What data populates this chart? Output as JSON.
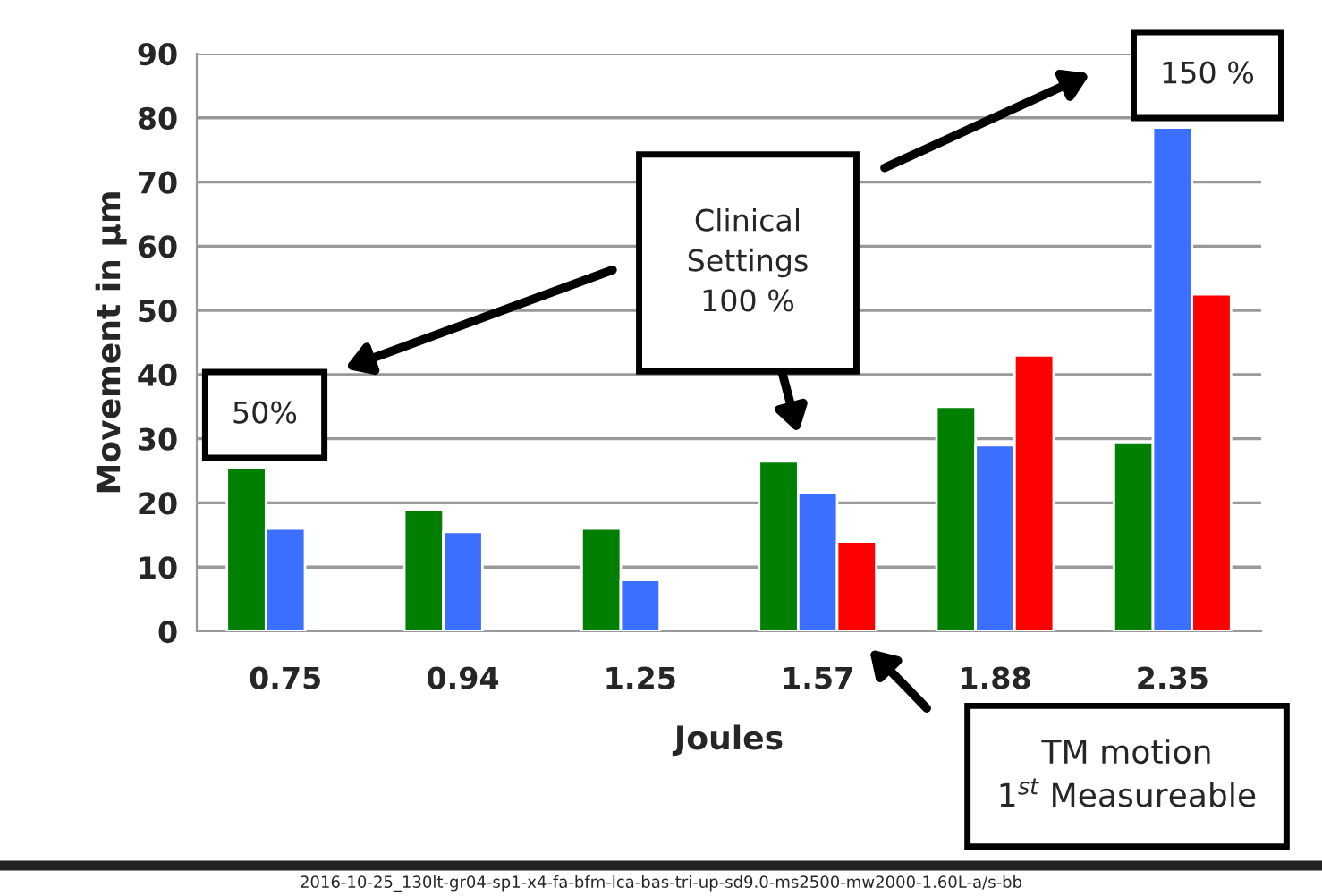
{
  "chart_data": {
    "type": "bar",
    "xlabel": "Joules",
    "ylabel": "Movement in µm",
    "categories": [
      "0.75",
      "0.94",
      "1.25",
      "1.57",
      "1.88",
      "2.35"
    ],
    "series": [
      {
        "color": "#007f00",
        "values": [
          25.5,
          19,
          16,
          26.5,
          35,
          29.5
        ]
      },
      {
        "color": "#3a6fff",
        "values": [
          16,
          15.5,
          8,
          21.5,
          29,
          78.5
        ]
      },
      {
        "color": "#ff0000",
        "values": [
          null,
          null,
          null,
          14,
          43,
          52.5
        ]
      }
    ],
    "ylim": [
      0,
      90
    ],
    "yticks": [
      0,
      10,
      20,
      30,
      40,
      50,
      60,
      70,
      80,
      90
    ],
    "grid": "y",
    "annotations": [
      "50%",
      "Clinical\nSettings\n100 %",
      "150 %",
      "TM motion\n1$^{st}$ Measureable",
      "2016-10-25_130lt-gr04-sp1-x4-fa-bfm-lca-bas-tri-up-sd9.0-ms2500-mw2000-1.60L-a/s-bb"
    ]
  }
}
